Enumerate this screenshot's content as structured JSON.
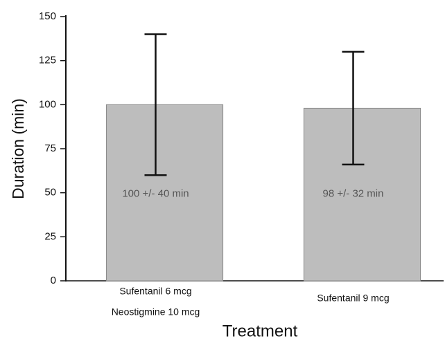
{
  "chart_data": {
    "type": "bar",
    "categories": [
      [
        "Sufentanil 6 mcg",
        "Neostigmine 10 mcg"
      ],
      [
        "Sufentanil 9 mcg"
      ]
    ],
    "values": [
      100,
      98
    ],
    "errors": [
      40,
      32
    ],
    "value_labels": [
      "100 +/- 40 min",
      "98 +/- 32 min"
    ],
    "color": "#bdbdbd",
    "ylabel": "Duration (min)",
    "xlabel": "Treatment",
    "ylim": [
      0,
      150
    ],
    "yticks": [
      0,
      25,
      50,
      75,
      100,
      125,
      150
    ]
  }
}
